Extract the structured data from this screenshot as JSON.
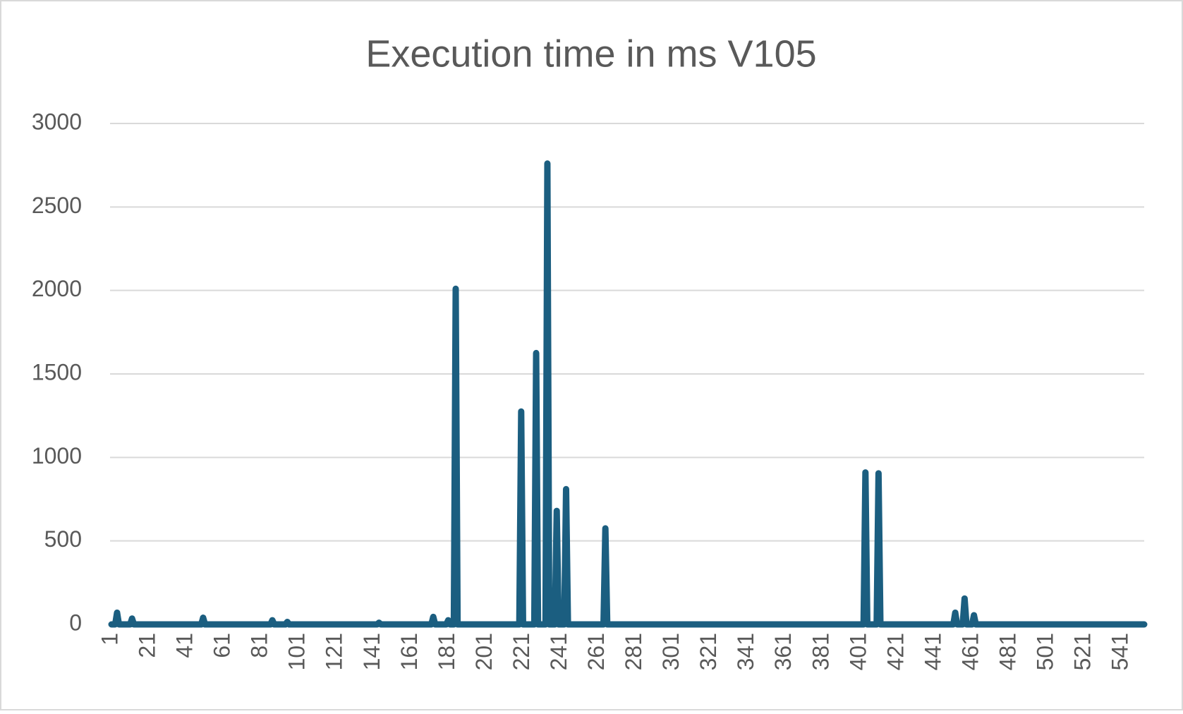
{
  "chart_data": {
    "type": "line",
    "title": "Execution time in ms V105",
    "x": [
      1,
      3,
      4,
      5,
      11,
      12,
      13,
      49,
      50,
      51,
      86,
      87,
      88,
      94,
      95,
      96,
      143,
      144,
      145,
      172,
      173,
      174,
      180,
      181,
      182,
      184,
      185,
      186,
      219,
      220,
      221,
      227,
      228,
      229,
      233,
      234,
      235,
      238,
      239,
      240,
      243,
      244,
      245,
      264,
      265,
      266,
      403,
      404,
      405,
      410,
      411,
      412,
      451,
      452,
      453,
      456,
      457,
      458,
      461,
      462,
      463,
      553
    ],
    "series": [
      {
        "color": "#1b5e80",
        "values": [
          0,
          0,
          70,
          0,
          0,
          35,
          0,
          0,
          40,
          0,
          0,
          25,
          0,
          0,
          15,
          0,
          0,
          10,
          0,
          0,
          45,
          0,
          0,
          25,
          0,
          0,
          2010,
          0,
          0,
          1275,
          0,
          0,
          1625,
          0,
          0,
          2760,
          0,
          0,
          680,
          0,
          0,
          810,
          0,
          0,
          575,
          0,
          0,
          910,
          0,
          0,
          905,
          0,
          0,
          70,
          0,
          0,
          155,
          0,
          0,
          55,
          0,
          0
        ]
      }
    ],
    "xlim": [
      1,
      553
    ],
    "xticks": [
      1,
      21,
      41,
      61,
      81,
      101,
      121,
      141,
      161,
      181,
      201,
      221,
      241,
      261,
      281,
      301,
      321,
      341,
      361,
      381,
      401,
      421,
      441,
      461,
      481,
      501,
      521,
      541
    ],
    "ylim": [
      0,
      3000
    ],
    "yticks": [
      0,
      500,
      1000,
      1500,
      2000,
      2500,
      3000
    ],
    "grid": true
  }
}
